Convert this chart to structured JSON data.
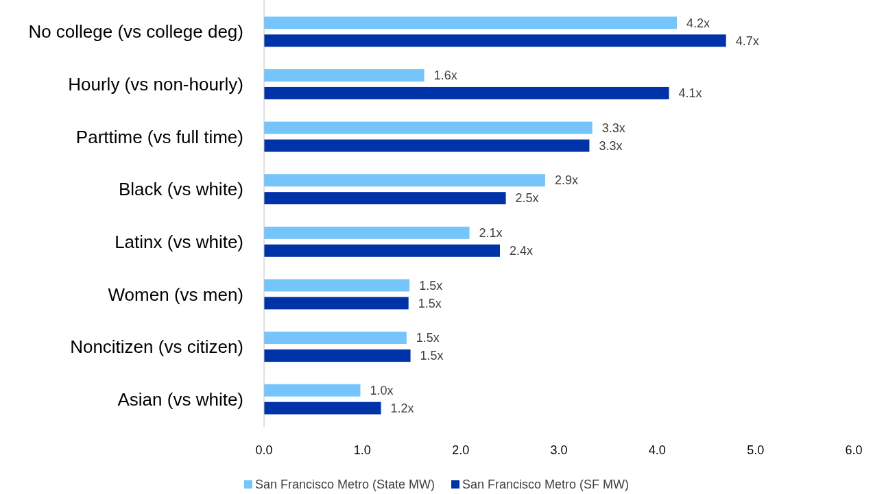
{
  "chart_data": {
    "type": "bar",
    "orientation": "horizontal",
    "categories": [
      "No college (vs college deg)",
      "Hourly (vs non-hourly)",
      "Parttime (vs full time)",
      "Black (vs white)",
      "Latinx (vs white)",
      "Women (vs men)",
      "Noncitizen (vs citizen)",
      "Asian (vs white)"
    ],
    "series": [
      {
        "name": "San Francisco Metro (State MW)",
        "color": "#75c5fb",
        "values": [
          4.2,
          1.63,
          3.34,
          2.86,
          2.09,
          1.48,
          1.45,
          0.98
        ],
        "value_labels": [
          "4.2x",
          "1.6x",
          "3.3x",
          "2.9x",
          "2.1x",
          "1.5x",
          "1.5x",
          "1.0x"
        ]
      },
      {
        "name": "San Francisco Metro (SF MW)",
        "color": "#0033a8",
        "values": [
          4.7,
          4.12,
          3.31,
          2.46,
          2.4,
          1.47,
          1.49,
          1.19
        ],
        "value_labels": [
          "4.7x",
          "4.1x",
          "3.3x",
          "2.5x",
          "2.4x",
          "1.5x",
          "1.5x",
          "1.2x"
        ]
      }
    ],
    "xlim": [
      0,
      6
    ],
    "xticks": [
      {
        "value": 0,
        "label": "0.0"
      },
      {
        "value": 1,
        "label": "1.0"
      },
      {
        "value": 2,
        "label": "2.0"
      },
      {
        "value": 3,
        "label": "3.0"
      },
      {
        "value": 4,
        "label": "4.0"
      },
      {
        "value": 5,
        "label": "5.0"
      },
      {
        "value": 6,
        "label": "6.0"
      }
    ],
    "grid": false,
    "legend": "bottom"
  }
}
